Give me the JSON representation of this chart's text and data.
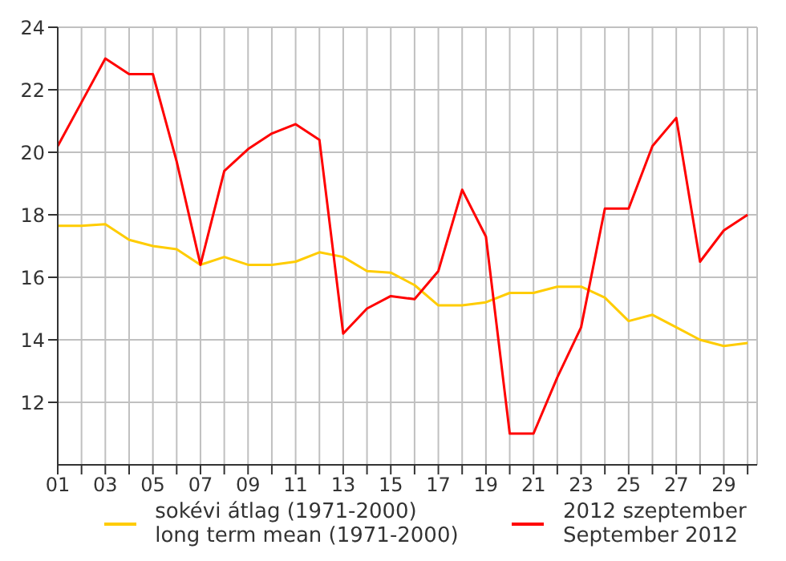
{
  "chart_data": {
    "type": "line",
    "x": [
      1,
      2,
      3,
      4,
      5,
      6,
      7,
      8,
      9,
      10,
      11,
      12,
      13,
      14,
      15,
      16,
      17,
      18,
      19,
      20,
      21,
      22,
      23,
      24,
      25,
      26,
      27,
      28,
      29,
      30
    ],
    "series": [
      {
        "name": "sokévi átlag (1971-2000)\nlong term mean (1971-2000)",
        "color": "#ffcc00",
        "values": [
          17.65,
          17.65,
          17.7,
          17.2,
          17.0,
          16.9,
          16.4,
          16.65,
          16.4,
          16.4,
          16.5,
          16.8,
          16.65,
          16.2,
          16.15,
          15.75,
          15.1,
          15.1,
          15.2,
          15.5,
          15.5,
          15.7,
          15.7,
          15.35,
          14.6,
          14.8,
          14.4,
          14.0,
          13.8,
          13.9
        ]
      },
      {
        "name": "2012 szeptember\nSeptember 2012",
        "color": "#ff0000",
        "values": [
          20.2,
          21.6,
          23.0,
          22.5,
          22.5,
          19.7,
          16.4,
          19.4,
          20.1,
          20.6,
          20.9,
          20.4,
          14.2,
          15.0,
          15.4,
          15.3,
          16.2,
          18.8,
          17.3,
          11.0,
          11.0,
          12.8,
          14.4,
          18.2,
          18.2,
          20.2,
          21.1,
          16.5,
          17.5,
          18.0
        ]
      }
    ],
    "xlim": [
      1,
      30.4
    ],
    "xticks": [
      {
        "value": 1,
        "label": "01"
      },
      {
        "value": 2,
        "label": null
      },
      {
        "value": 3,
        "label": "03"
      },
      {
        "value": 4,
        "label": null
      },
      {
        "value": 5,
        "label": "05"
      },
      {
        "value": 6,
        "label": null
      },
      {
        "value": 7,
        "label": "07"
      },
      {
        "value": 8,
        "label": null
      },
      {
        "value": 9,
        "label": "09"
      },
      {
        "value": 10,
        "label": null
      },
      {
        "value": 11,
        "label": "11"
      },
      {
        "value": 12,
        "label": null
      },
      {
        "value": 13,
        "label": "13"
      },
      {
        "value": 14,
        "label": null
      },
      {
        "value": 15,
        "label": "15"
      },
      {
        "value": 16,
        "label": null
      },
      {
        "value": 17,
        "label": "17"
      },
      {
        "value": 18,
        "label": null
      },
      {
        "value": 19,
        "label": "19"
      },
      {
        "value": 20,
        "label": null
      },
      {
        "value": 21,
        "label": "21"
      },
      {
        "value": 22,
        "label": null
      },
      {
        "value": 23,
        "label": "23"
      },
      {
        "value": 24,
        "label": null
      },
      {
        "value": 25,
        "label": "25"
      },
      {
        "value": 26,
        "label": null
      },
      {
        "value": 27,
        "label": "27"
      },
      {
        "value": 28,
        "label": null
      },
      {
        "value": 29,
        "label": "29"
      },
      {
        "value": 30,
        "label": null
      }
    ],
    "ylim": [
      10,
      24
    ],
    "yticks": [
      12,
      14,
      16,
      18,
      20,
      22,
      24
    ],
    "grid": true,
    "legend": "bottom",
    "marker": "none",
    "line_style": "solid"
  }
}
